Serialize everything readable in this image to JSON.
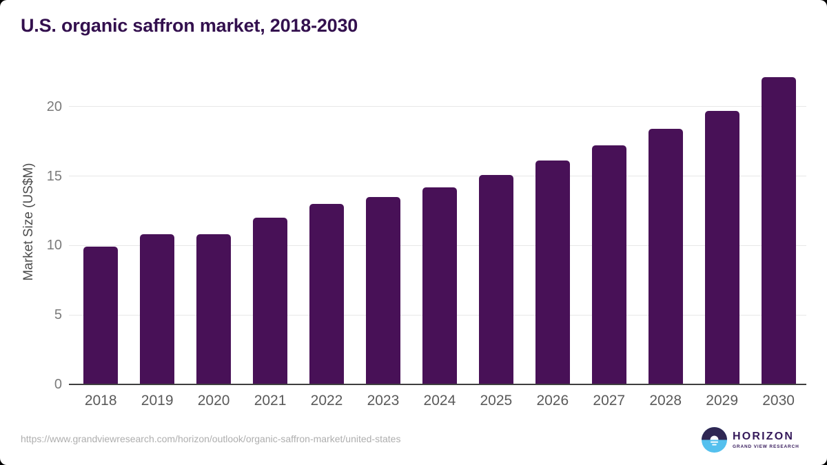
{
  "chart_data": {
    "type": "bar",
    "title": "U.S. organic saffron market, 2018-2030",
    "ylabel": "Market Size (US$M)",
    "xlabel": "",
    "categories": [
      "2018",
      "2019",
      "2020",
      "2021",
      "2022",
      "2023",
      "2024",
      "2025",
      "2026",
      "2027",
      "2028",
      "2029",
      "2030"
    ],
    "values": [
      9.9,
      10.8,
      10.8,
      12.0,
      13.0,
      13.5,
      14.2,
      15.1,
      16.1,
      17.2,
      18.4,
      19.7,
      22.1
    ],
    "yticks": [
      0,
      5,
      10,
      15,
      20
    ],
    "ylim": [
      0,
      22.8
    ],
    "grid": true,
    "legend": "none",
    "bar_color": "#481157",
    "gridline_color": "#e7e7e7",
    "axis_line_color": "#3e3e3e",
    "title_color": "#33104e"
  },
  "footer": {
    "source_url": "https://www.grandviewresearch.com/horizon/outlook/organic-saffron-market/united-states",
    "logo": {
      "name": "HORIZON",
      "subtitle": "GRAND VIEW RESEARCH",
      "icon": "sunset-over-water-icon",
      "icon_dark": "#2f2753",
      "icon_blue": "#54c0ee",
      "text_color": "#35195a"
    }
  }
}
